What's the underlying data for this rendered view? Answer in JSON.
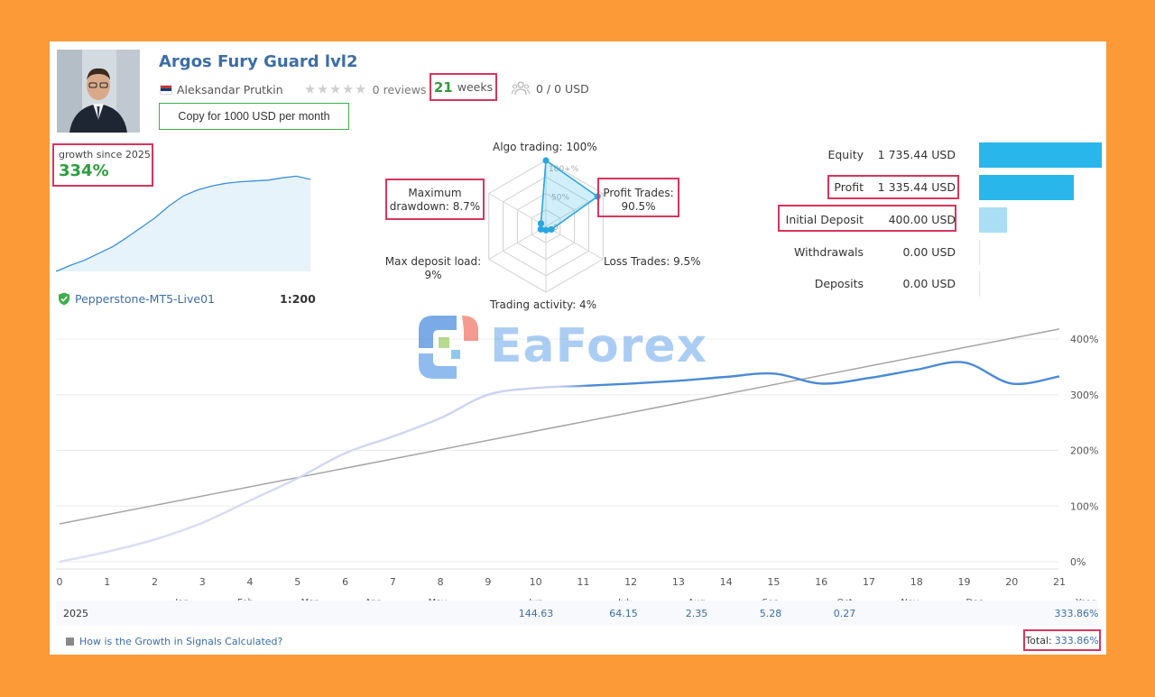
{
  "signal": {
    "title": "Argos Fury Guard lvl2",
    "author": "Aleksandar Prutkin",
    "reviews": "0 reviews",
    "weeks_number": "21",
    "weeks_label": "weeks",
    "subscribers": "0 / 0 USD",
    "copy_button": "Copy for 1000 USD per month",
    "growth_label": "growth since 2025",
    "growth_value": "334%",
    "broker": "Pepperstone-MT5-Live01",
    "leverage": "1:200"
  },
  "radar": {
    "algo_trading": "Algo trading: 100%",
    "profit_trades_title": "Profit Trades:",
    "profit_trades_value": "90.5%",
    "loss_trades": "Loss Trades: 9.5%",
    "trading_activity": "Trading activity: 4%",
    "max_deposit_load_title": "Max deposit load:",
    "max_deposit_load_value": "9%",
    "max_drawdown_title": "Maximum",
    "max_drawdown_value": "drawdown: 8.7%",
    "scale_100": "100+%",
    "scale_50": "50%",
    "scale_0": "0",
    "values": {
      "algo_trading": 100,
      "profit_trades": 90.5,
      "loss_trades": 9.5,
      "trading_activity": 4,
      "max_deposit_load": 9,
      "max_drawdown": 8.7
    }
  },
  "stats": [
    {
      "label": "Equity",
      "value": "1 735.44 USD",
      "amount": 1735.44
    },
    {
      "label": "Profit",
      "value": "1 335.44 USD",
      "amount": 1335.44
    },
    {
      "label": "Initial Deposit",
      "value": "400.00 USD",
      "amount": 400
    },
    {
      "label": "Withdrawals",
      "value": "0.00 USD",
      "amount": 0
    },
    {
      "label": "Deposits",
      "value": "0.00 USD",
      "amount": 0
    }
  ],
  "colors": {
    "accent": "#3c6ea5",
    "positive": "#2e9d3e",
    "highlight": "#d6365c",
    "bar": "#29b6ea",
    "background": "#fb9a37"
  },
  "watermark": "EaForex",
  "chart_data": {
    "type": "line",
    "x_ticks": [
      "0",
      "1",
      "2",
      "3",
      "4",
      "5",
      "6",
      "7",
      "8",
      "9",
      "10",
      "11",
      "12",
      "13",
      "14",
      "15",
      "16",
      "17",
      "18",
      "19",
      "20",
      "21"
    ],
    "y_ticks": [
      "400%",
      "300%",
      "200%",
      "100%",
      "0%"
    ],
    "months": [
      "Jan",
      "Feb",
      "Mar",
      "Apr",
      "May",
      "Jun",
      "Jul",
      "Aug",
      "Sep",
      "Oct",
      "Nov",
      "Dec"
    ],
    "year_label": "Year",
    "ylim": [
      0,
      400
    ],
    "series": [
      {
        "x": [
          0,
          1,
          2,
          3,
          4,
          5,
          6,
          7,
          8,
          9,
          10,
          11,
          12,
          13,
          14,
          15,
          16,
          17,
          18,
          19,
          20,
          21
        ],
        "y": [
          0,
          18,
          40,
          70,
          110,
          150,
          195,
          225,
          258,
          300,
          312,
          316,
          320,
          325,
          332,
          338,
          320,
          330,
          345,
          358,
          320,
          333
        ]
      },
      {
        "x": [
          0,
          21
        ],
        "y": [
          68,
          418
        ]
      }
    ]
  },
  "mini_chart": {
    "type": "area",
    "y": [
      0,
      15,
      28,
      45,
      62,
      85,
      110,
      135,
      165,
      190,
      205,
      215,
      222,
      226,
      228,
      230,
      236,
      240,
      232
    ]
  },
  "returns": {
    "year": "2025",
    "months": [
      "",
      "",
      "",
      "",
      "",
      "144.63",
      "64.15",
      "2.35",
      "5.28",
      "0.27",
      "",
      ""
    ],
    "year_total": "333.86%"
  },
  "footer": {
    "help_link": "How is the Growth in Signals Calculated?",
    "total_label": "Total:",
    "total_value": "333.86%"
  }
}
